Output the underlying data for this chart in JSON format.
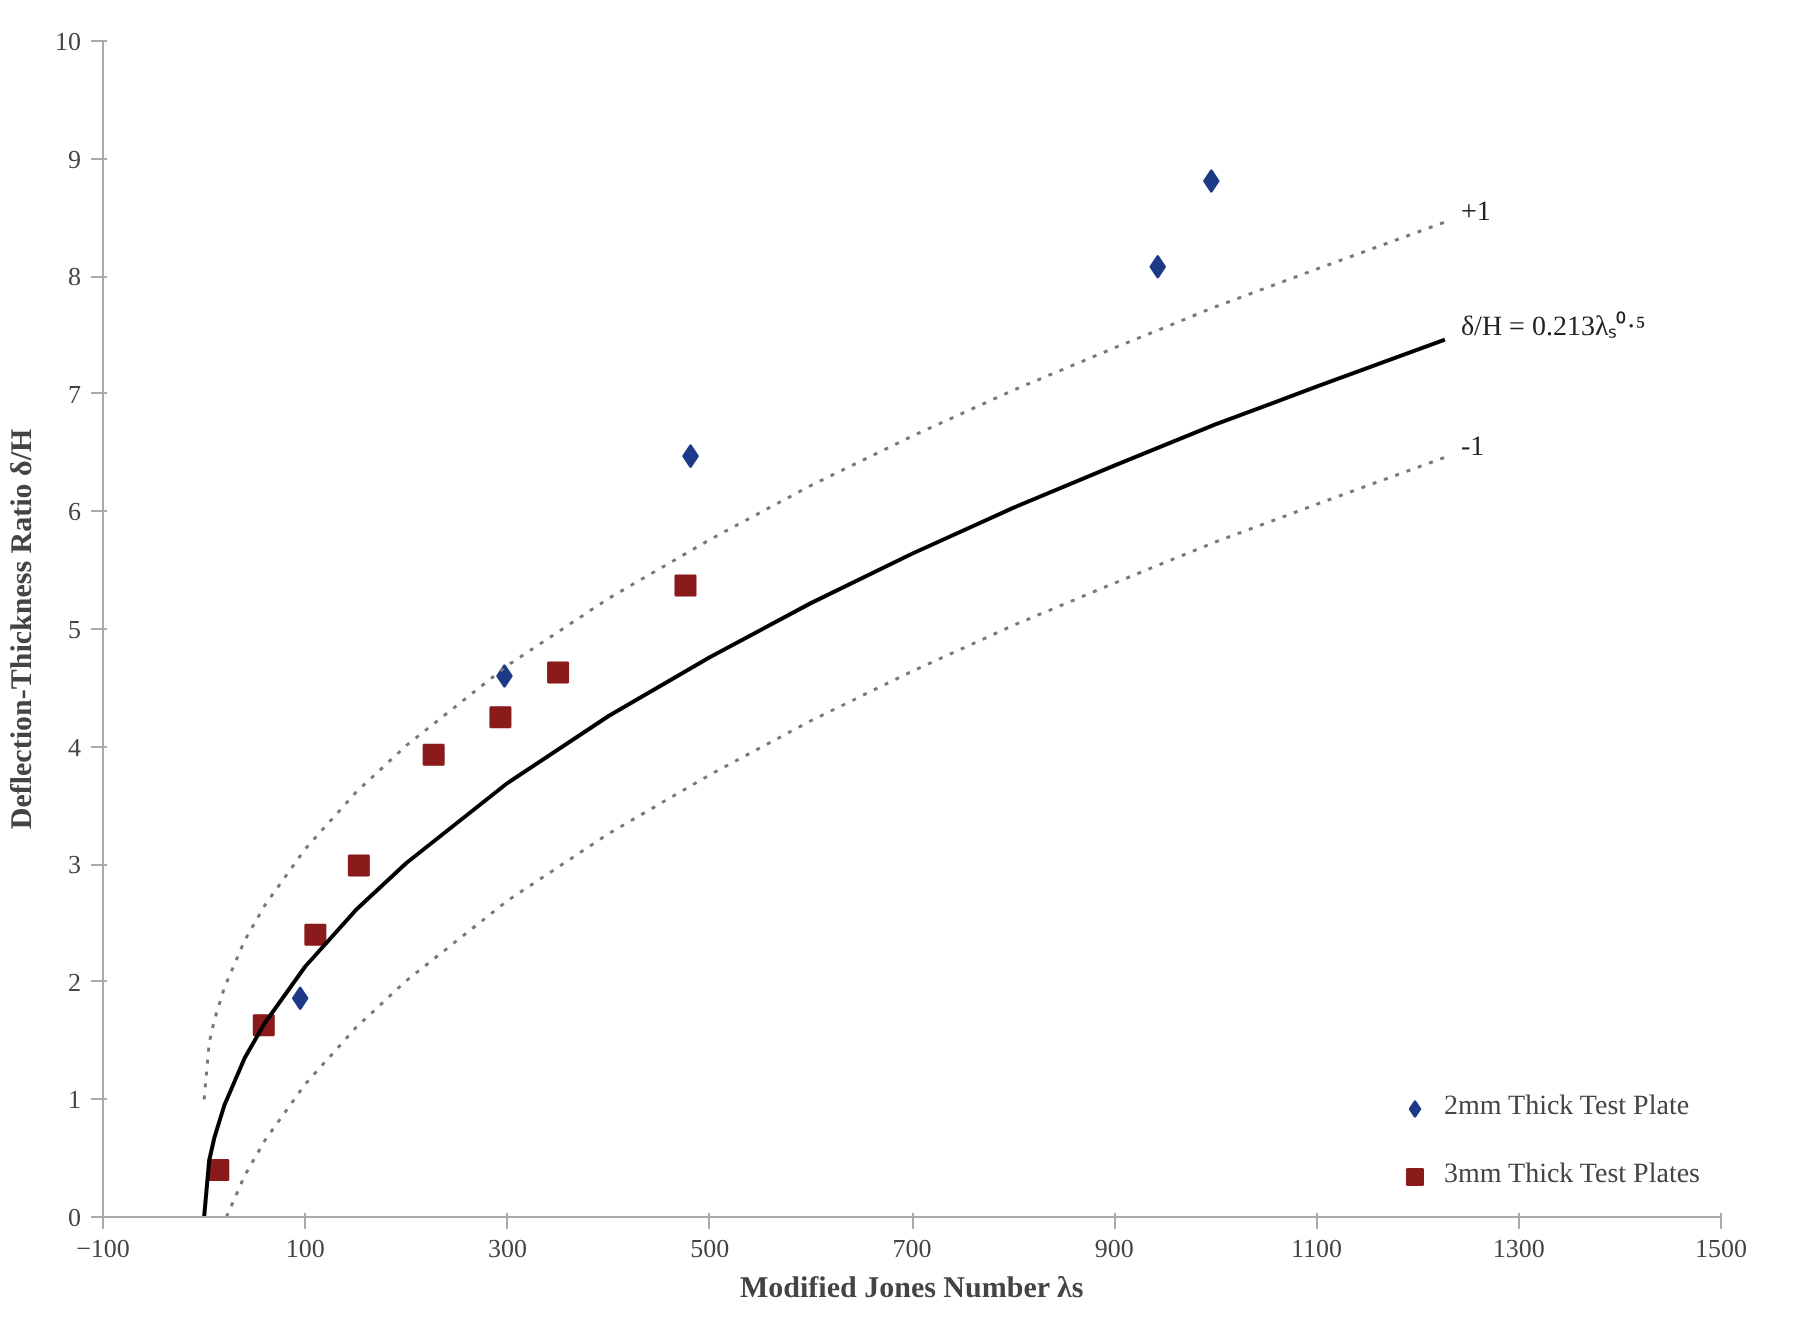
{
  "chart_data": {
    "type": "scatter",
    "xlabel": "Modified Jones Number λs",
    "ylabel": "Deflection-Thickness Ratio δ/H",
    "xlim": [
      -100,
      1500
    ],
    "xticks": [
      -100,
      100,
      300,
      500,
      700,
      900,
      1100,
      1300,
      1500
    ],
    "ylim": [
      0,
      10
    ],
    "yticks": [
      0,
      1,
      2,
      3,
      4,
      5,
      6,
      7,
      8,
      9,
      10
    ],
    "grid": false,
    "legend": "bottom right",
    "series": [
      {
        "name": "2mm Thick Test Plate",
        "color": "#1c3a87",
        "marker": "diamond",
        "x": [
          95,
          297,
          481,
          943,
          996
        ],
        "values": [
          1.86,
          4.6,
          6.47,
          8.08,
          8.81
        ]
      },
      {
        "name": "3mm Thick Test Plates",
        "color": "#8b1a1a",
        "marker": "square",
        "x": [
          14,
          59,
          110,
          153,
          227,
          293,
          350,
          476
        ],
        "values": [
          0.4,
          1.63,
          2.4,
          2.99,
          3.93,
          4.25,
          4.63,
          5.37
        ]
      },
      {
        "type": "line",
        "color": "#000000",
        "line_style": "solid",
        "x": [
          0,
          5,
          10,
          20,
          40,
          60,
          100,
          150,
          200,
          300,
          400,
          500,
          600,
          700,
          800,
          900,
          1000,
          1100,
          1227
        ],
        "values": [
          0,
          0.48,
          0.67,
          0.95,
          1.35,
          1.65,
          2.13,
          2.61,
          3.01,
          3.69,
          4.26,
          4.76,
          5.22,
          5.64,
          6.03,
          6.39,
          6.74,
          7.06,
          7.46
        ]
      },
      {
        "type": "line",
        "color": "#777777",
        "line_style": "dotted",
        "x": [
          0,
          5,
          10,
          20,
          40,
          60,
          100,
          150,
          200,
          300,
          400,
          500,
          600,
          700,
          800,
          900,
          1000,
          1100,
          1227
        ],
        "values": [
          1,
          1.48,
          1.67,
          1.95,
          2.35,
          2.65,
          3.13,
          3.61,
          4.01,
          4.69,
          5.26,
          5.76,
          6.22,
          6.64,
          7.03,
          7.39,
          7.74,
          8.06,
          8.46
        ]
      },
      {
        "type": "line",
        "color": "#777777",
        "line_style": "dotted",
        "x": [
          22,
          40,
          60,
          100,
          150,
          200,
          300,
          400,
          500,
          600,
          700,
          800,
          900,
          1000,
          1100,
          1227
        ],
        "values": [
          0,
          0.35,
          0.65,
          1.13,
          1.61,
          2.01,
          2.69,
          3.26,
          3.76,
          4.22,
          4.64,
          5.03,
          5.39,
          5.74,
          6.06,
          6.46
        ]
      }
    ],
    "annotations": [
      "+1",
      "δ/H = 0.213λₛ⁰·⁵",
      "-1"
    ]
  }
}
